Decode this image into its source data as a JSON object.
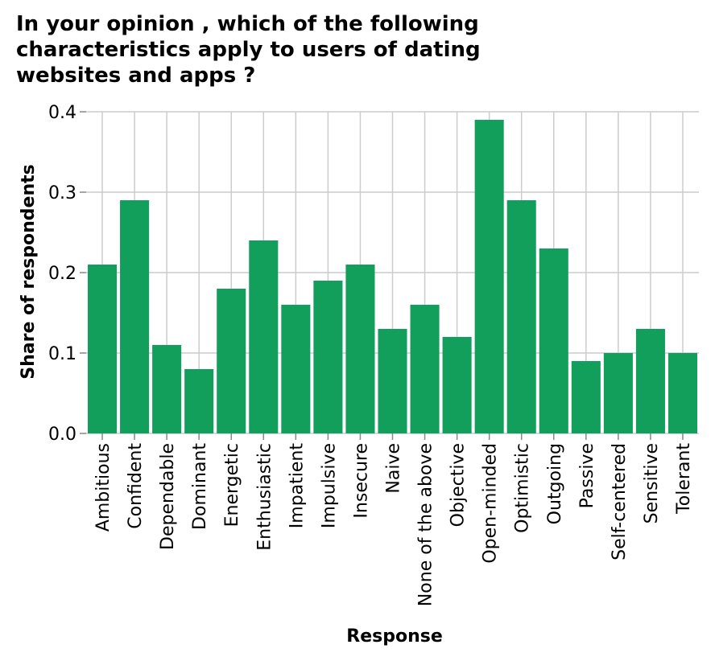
{
  "chart_data": {
    "type": "bar",
    "title": "In your opinion , which of the following characteristics apply to users of dating websites and apps ?",
    "xlabel": "Response",
    "ylabel": "Share of respondents",
    "categories": [
      "Ambitious",
      "Confident",
      "Dependable",
      "Dominant",
      "Energetic",
      "Enthusiastic",
      "Impatient",
      "Impulsive",
      "Insecure",
      "Naive",
      "None of the above",
      "Objective",
      "Open-minded",
      "Optimistic",
      "Outgoing",
      "Passive",
      "Self-centered",
      "Sensitive",
      "Tolerant"
    ],
    "values": [
      0.21,
      0.29,
      0.11,
      0.08,
      0.18,
      0.24,
      0.16,
      0.19,
      0.21,
      0.13,
      0.16,
      0.12,
      0.39,
      0.29,
      0.23,
      0.09,
      0.1,
      0.13,
      0.1
    ],
    "yticks": [
      "0.0",
      "0.1",
      "0.2",
      "0.3",
      "0.4"
    ],
    "ylim": [
      0,
      0.4
    ],
    "grid": true,
    "bar_color": "#129e5b"
  }
}
